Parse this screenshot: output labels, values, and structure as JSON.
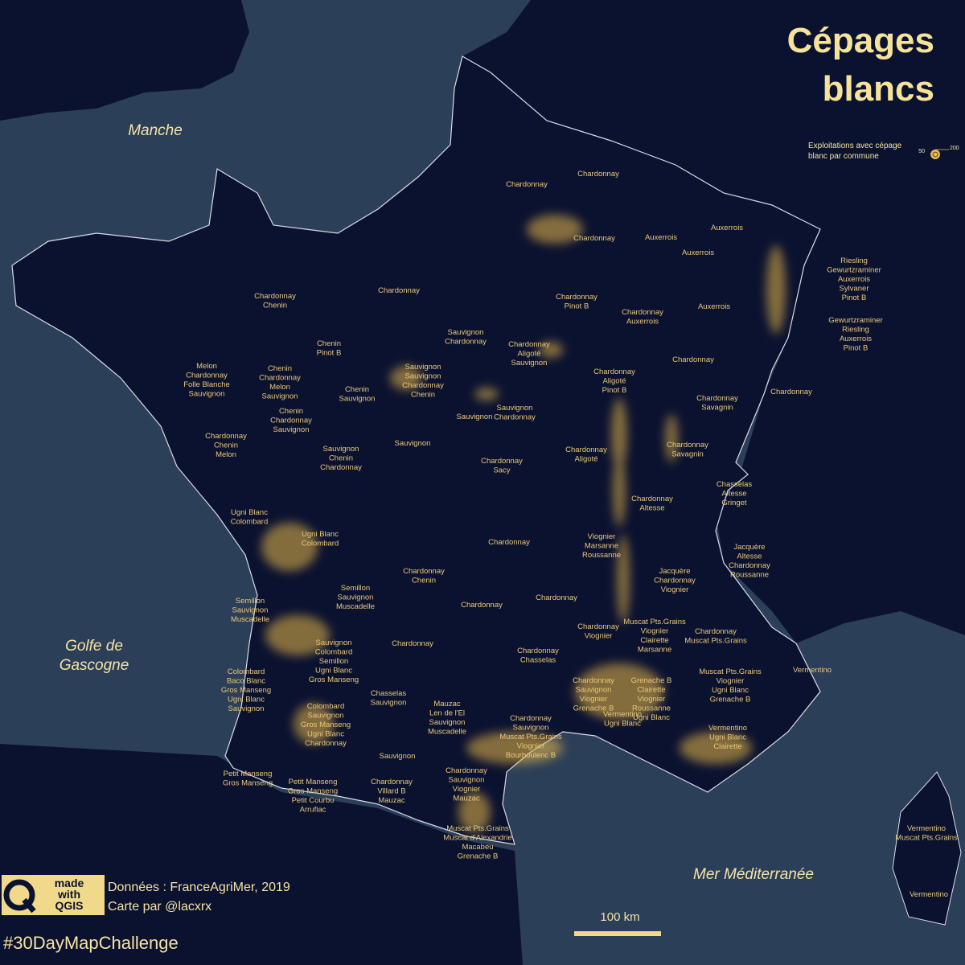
{
  "title": [
    "Cépages",
    "blancs"
  ],
  "legend": {
    "title": [
      "Exploitations avec cépage",
      "blanc par commune"
    ],
    "sizes": [
      50,
      200
    ]
  },
  "seas": [
    [
      "Manche"
    ],
    [
      "Golfe de",
      "Gascogne"
    ],
    [
      "Mer Méditerranée"
    ]
  ],
  "credits": {
    "badge": [
      "made",
      "with",
      "QGIS"
    ],
    "source": "Données : FranceAgriMer, 2019",
    "author": "Carte par @lacxrx",
    "hashtag": "#30DayMapChallenge",
    "scale": "100 km"
  },
  "regions": [
    {
      "lines": [
        "Chardonnay"
      ]
    },
    {
      "lines": [
        "Chardonnay"
      ]
    },
    {
      "lines": [
        "Chardonnay"
      ]
    },
    {
      "lines": [
        "Auxerrois"
      ]
    },
    {
      "lines": [
        "Auxerrois"
      ]
    },
    {
      "lines": [
        "Auxerrois"
      ]
    },
    {
      "lines": [
        "Riesling",
        "Gewurtzraminer",
        "Auxerrois",
        "Sylvaner",
        "Pinot B"
      ]
    },
    {
      "lines": [
        "Auxerrois"
      ]
    },
    {
      "lines": [
        "Gewurtzraminer",
        "Riesling",
        "Auxerrois",
        "Pinot B"
      ]
    },
    {
      "lines": [
        "Chardonnay"
      ]
    },
    {
      "lines": [
        "Chardonnay",
        "Chenin"
      ]
    },
    {
      "lines": [
        "Chenin",
        "Pinot B"
      ]
    },
    {
      "lines": [
        "Chardonnay",
        "Pinot B"
      ]
    },
    {
      "lines": [
        "Chardonnay",
        "Auxerrois"
      ]
    },
    {
      "lines": [
        "Sauvignon",
        "Chardonnay"
      ]
    },
    {
      "lines": [
        "Chardonnay",
        "Aligoté",
        "Sauvignon"
      ]
    },
    {
      "lines": [
        "Chardonnay"
      ]
    },
    {
      "lines": [
        "Chardonnay"
      ]
    },
    {
      "lines": [
        "Melon",
        "Chardonnay",
        "Folle Blanche",
        "Sauvignon"
      ]
    },
    {
      "lines": [
        "Chenin",
        "Chardonnay",
        "Melon",
        "Sauvignon"
      ]
    },
    {
      "lines": [
        "Chenin",
        "Sauvignon"
      ]
    },
    {
      "lines": [
        "Sauvignon",
        "Sauvignon",
        "Chardonnay",
        "Chenin"
      ]
    },
    {
      "lines": [
        "Chardonnay",
        "Aligoté",
        "Pinot B"
      ]
    },
    {
      "lines": [
        "Chardonnay",
        "Savagnin"
      ]
    },
    {
      "lines": [
        "Sauvignon"
      ]
    },
    {
      "lines": [
        "Sauvignon",
        "Chardonnay"
      ]
    },
    {
      "lines": [
        "Chardonnay",
        "Chenin",
        "Melon"
      ]
    },
    {
      "lines": [
        "Chenin",
        "Chardonnay",
        "Sauvignon"
      ]
    },
    {
      "lines": [
        "Sauvignon",
        "Chenin",
        "Chardonnay"
      ]
    },
    {
      "lines": [
        "Sauvignon"
      ]
    },
    {
      "lines": [
        "Chardonnay",
        "Aligoté"
      ]
    },
    {
      "lines": [
        "Chardonnay",
        "Savagnin"
      ]
    },
    {
      "lines": [
        "Chardonnay",
        "Sacy"
      ]
    },
    {
      "lines": [
        "Chasselas",
        "Altesse",
        "Gringet"
      ]
    },
    {
      "lines": [
        "Chardonnay",
        "Altesse"
      ]
    },
    {
      "lines": [
        "Ugni Blanc",
        "Colombard"
      ]
    },
    {
      "lines": [
        "Ugni Blanc",
        "Colombard"
      ]
    },
    {
      "lines": [
        "Chardonnay"
      ]
    },
    {
      "lines": [
        "Viognier",
        "Marsanne",
        "Roussanne"
      ]
    },
    {
      "lines": [
        "Jacquère",
        "Altesse",
        "Chardonnay",
        "Roussanne"
      ]
    },
    {
      "lines": [
        "Jacquère",
        "Chardonnay",
        "Viognier"
      ]
    },
    {
      "lines": [
        "Chardonnay",
        "Chenin"
      ]
    },
    {
      "lines": [
        "Semillon",
        "Sauvignon",
        "Muscadelle"
      ]
    },
    {
      "lines": [
        "Semillon",
        "Sauvignon",
        "Muscadelle"
      ]
    },
    {
      "lines": [
        "Chardonnay"
      ]
    },
    {
      "lines": [
        "Chardonnay"
      ]
    },
    {
      "lines": [
        "Chardonnay",
        "Viognier"
      ]
    },
    {
      "lines": [
        "Muscat Pts.Grains",
        "Viognier",
        "Clairette",
        "Marsanne"
      ]
    },
    {
      "lines": [
        "Chardonnay",
        "Muscat Pts.Grains"
      ]
    },
    {
      "lines": [
        "Chardonnay"
      ]
    },
    {
      "lines": [
        "Sauvignon",
        "Colombard",
        "Semillon",
        "Ugni Blanc",
        "Gros Manseng"
      ]
    },
    {
      "lines": [
        "Chardonnay",
        "Chasselas"
      ]
    },
    {
      "lines": [
        "Colombard",
        "Baco Blanc",
        "Gros Manseng",
        "Ugni Blanc",
        "Sauvignon"
      ]
    },
    {
      "lines": [
        "Muscat Pts.Grains",
        "Viognier",
        "Ugni Blanc",
        "Grenache B"
      ]
    },
    {
      "lines": [
        "Vermentino"
      ]
    },
    {
      "lines": [
        "Chardonnay",
        "Sauvignon",
        "Viognier",
        "Grenache B"
      ]
    },
    {
      "lines": [
        "Grenache B",
        "Clairette",
        "Viognier",
        "Roussanne",
        "Ugni Blanc"
      ]
    },
    {
      "lines": [
        "Chasselas",
        "Sauvignon"
      ]
    },
    {
      "lines": [
        "Colombard",
        "Sauvignon",
        "Gros Manseng",
        "Ugni Blanc",
        "Chardonnay"
      ]
    },
    {
      "lines": [
        "Mauzac",
        "Len de l'El",
        "Sauvignon",
        "Muscadelle"
      ]
    },
    {
      "lines": [
        "Chardonnay",
        "Sauvignon",
        "Muscat Pts.Grains",
        "Viognier",
        "Bourboulenc B"
      ]
    },
    {
      "lines": [
        "Vermentino",
        "Ugni Blanc"
      ]
    },
    {
      "lines": [
        "Vermentino",
        "Ugni Blanc",
        "Clairette"
      ]
    },
    {
      "lines": [
        "Sauvignon"
      ]
    },
    {
      "lines": [
        "Chardonnay",
        "Sauvignon",
        "Viognier",
        "Mauzac"
      ]
    },
    {
      "lines": [
        "Petit Manseng",
        "Gros Manseng"
      ]
    },
    {
      "lines": [
        "Petit Manseng",
        "Gros Manseng",
        "Petit Courbu",
        "Arrufiac"
      ]
    },
    {
      "lines": [
        "Chardonnay",
        "Villard B",
        "Mauzac"
      ]
    },
    {
      "lines": [
        "Muscat Pts.Grains",
        "Muscat d'Alexandrie",
        "Macabeu",
        "Grenache B"
      ]
    },
    {
      "lines": [
        "Vermentino",
        "Muscat Pts.Grains"
      ]
    },
    {
      "lines": [
        "Vermentino"
      ]
    }
  ]
}
